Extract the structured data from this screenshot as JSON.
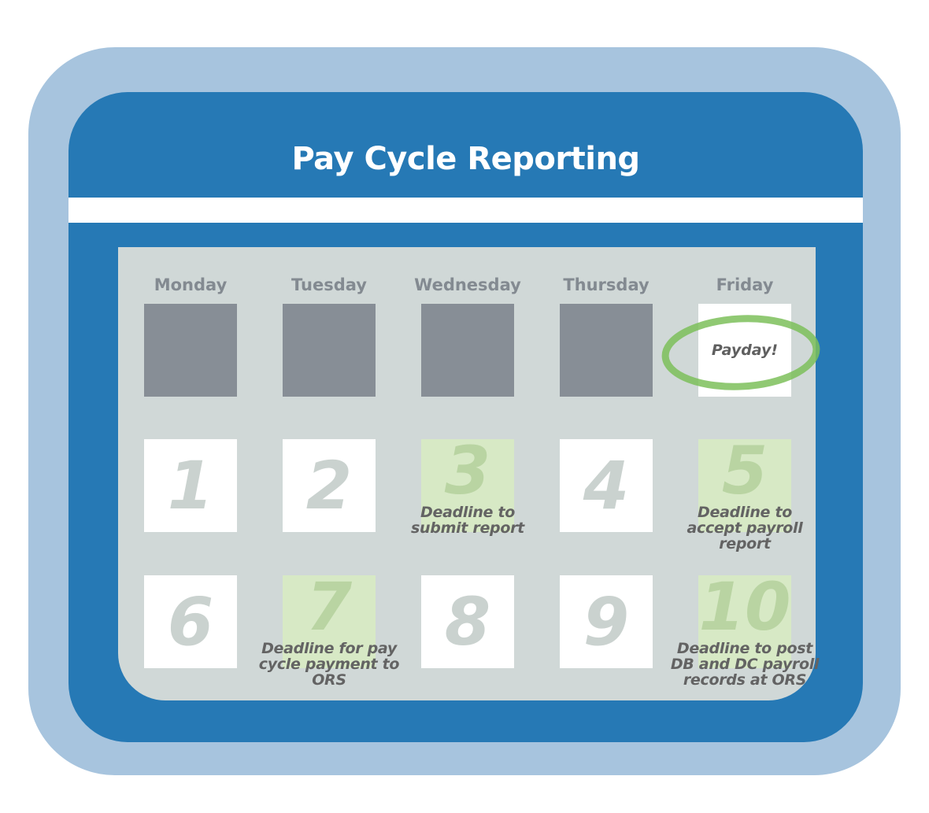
{
  "title": "Pay Cycle Reporting",
  "days": [
    "Monday",
    "Tuesday",
    "Wednesday",
    "Thursday",
    "Friday"
  ],
  "week0": {
    "friday_label": "Payday!"
  },
  "cells": [
    {
      "number": "1",
      "note": ""
    },
    {
      "number": "2",
      "note": ""
    },
    {
      "number": "3",
      "note": "Deadline to submit report"
    },
    {
      "number": "4",
      "note": ""
    },
    {
      "number": "5",
      "note": "Deadline to accept payroll report"
    },
    {
      "number": "6",
      "note": ""
    },
    {
      "number": "7",
      "note": "Deadline for pay cycle payment to ORS"
    },
    {
      "number": "8",
      "note": ""
    },
    {
      "number": "9",
      "note": ""
    },
    {
      "number": "10",
      "note": "Deadline to post DB and DC payroll records at ORS"
    }
  ],
  "colors": {
    "frame_outer": "#a7c4de",
    "frame_inner": "#2679b5",
    "panel": "#d0d8d7",
    "blank_day": "#878e96",
    "highlight": "#d7e9c5",
    "payday_circle": "#7cc05a"
  }
}
